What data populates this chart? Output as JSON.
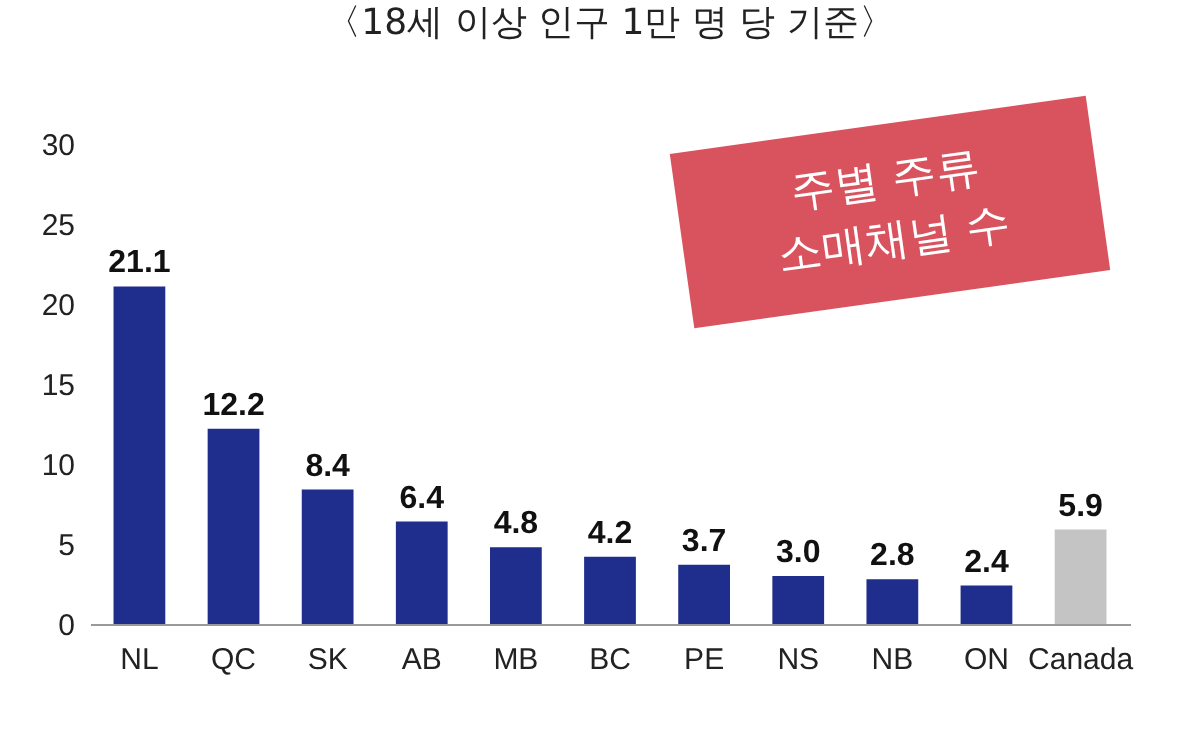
{
  "chart_data": {
    "type": "bar",
    "title": "〈18세 이상 인구 1만 명 당 기준〉",
    "categories": [
      "NL",
      "QC",
      "SK",
      "AB",
      "MB",
      "BC",
      "PE",
      "NS",
      "NB",
      "ON",
      "Canada"
    ],
    "values": [
      21.1,
      12.2,
      8.4,
      6.4,
      4.8,
      4.2,
      3.7,
      3.0,
      2.8,
      2.4,
      5.9
    ],
    "colors": [
      "#1f2d8c",
      "#1f2d8c",
      "#1f2d8c",
      "#1f2d8c",
      "#1f2d8c",
      "#1f2d8c",
      "#1f2d8c",
      "#1f2d8c",
      "#1f2d8c",
      "#1f2d8c",
      "#c4c4c4"
    ],
    "value_labels": [
      "21.1",
      "12.2",
      "8.4",
      "6.4",
      "4.8",
      "4.2",
      "3.7",
      "3.0",
      "2.8",
      "2.4",
      "5.9"
    ],
    "ylim": [
      0,
      30
    ],
    "yticks": [
      0,
      5,
      10,
      15,
      20,
      25,
      30
    ],
    "grid": false,
    "annotations": [
      "주별 주류\n소매채널 수"
    ]
  }
}
